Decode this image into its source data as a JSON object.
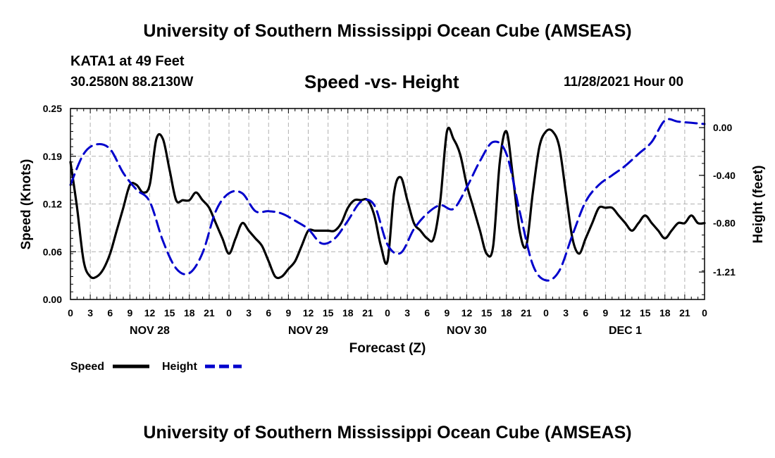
{
  "header": {
    "title": "University of Southern Mississippi Ocean Cube (AMSEAS)",
    "station": "KATA1 at 49 Feet",
    "coordinates": "30.2580N  88.2130W",
    "datetime": "11/28/2021 Hour 00"
  },
  "footer": {
    "title": "University of Southern Mississippi Ocean Cube (AMSEAS)"
  },
  "chart_data": {
    "type": "line",
    "title": "Speed -vs- Height",
    "xlabel": "Forecast (Z)",
    "ylabel": "Speed (Knots)",
    "y2label": "Height (feet)",
    "xlim": [
      0,
      96
    ],
    "ylim": [
      0,
      0.25
    ],
    "y2lim": [
      -1.44,
      0.16
    ],
    "yticks": [
      {
        "v": 0.0,
        "label": "0.00"
      },
      {
        "v": 0.0625,
        "label": "0.06"
      },
      {
        "v": 0.125,
        "label": "0.12"
      },
      {
        "v": 0.1875,
        "label": "0.19"
      },
      {
        "v": 0.25,
        "label": "0.25"
      }
    ],
    "y2ticks": [
      {
        "v": 0.0,
        "label": "0.00"
      },
      {
        "v": -0.4,
        "label": "-0.40"
      },
      {
        "v": -0.8,
        "label": "-0.80"
      },
      {
        "v": -1.21,
        "label": "-1.21"
      }
    ],
    "xtick_labels": [
      "0",
      "3",
      "6",
      "9",
      "12",
      "15",
      "18",
      "21",
      "0",
      "3",
      "6",
      "9",
      "12",
      "15",
      "18",
      "21",
      "0",
      "3",
      "6",
      "9",
      "12",
      "15",
      "18",
      "21",
      "0",
      "3",
      "6",
      "9",
      "12",
      "15",
      "18",
      "21",
      "0"
    ],
    "day_labels": [
      {
        "x": 12,
        "label": "NOV 28"
      },
      {
        "x": 36,
        "label": "NOV 29"
      },
      {
        "x": 60,
        "label": "NOV 30"
      },
      {
        "x": 84,
        "label": "DEC 1"
      }
    ],
    "grid": true,
    "legend": [
      {
        "name": "Speed",
        "color": "#000000",
        "style": "solid"
      },
      {
        "name": "Height",
        "color": "#0000cc",
        "style": "dashed"
      }
    ],
    "series": [
      {
        "name": "Speed",
        "axis": "left",
        "color": "#000000",
        "x": [
          0,
          1,
          2,
          3,
          4,
          5,
          6,
          7,
          8,
          9,
          10,
          11,
          12,
          13,
          14,
          15,
          16,
          17,
          18,
          19,
          20,
          21,
          22,
          23,
          24,
          25,
          26,
          27,
          28,
          29,
          30,
          31,
          32,
          33,
          34,
          35,
          36,
          37,
          38,
          39,
          40,
          41,
          42,
          43,
          44,
          45,
          46,
          47,
          48,
          49,
          50,
          51,
          52,
          53,
          54,
          55,
          56,
          57,
          58,
          59,
          60,
          61,
          62,
          63,
          64,
          65,
          66,
          67,
          68,
          69,
          70,
          71,
          72,
          73,
          74,
          75,
          76,
          77,
          78,
          79,
          80,
          81,
          82,
          83,
          84,
          85,
          86,
          87,
          88,
          89,
          90,
          91,
          92,
          93,
          94,
          95,
          96
        ],
        "values": [
          0.18,
          0.12,
          0.05,
          0.03,
          0.03,
          0.04,
          0.06,
          0.09,
          0.12,
          0.15,
          0.15,
          0.14,
          0.15,
          0.21,
          0.21,
          0.17,
          0.13,
          0.13,
          0.13,
          0.14,
          0.13,
          0.12,
          0.1,
          0.08,
          0.06,
          0.08,
          0.1,
          0.09,
          0.08,
          0.07,
          0.05,
          0.03,
          0.03,
          0.04,
          0.05,
          0.07,
          0.09,
          0.09,
          0.09,
          0.09,
          0.09,
          0.1,
          0.12,
          0.13,
          0.13,
          0.13,
          0.11,
          0.07,
          0.05,
          0.14,
          0.16,
          0.13,
          0.1,
          0.09,
          0.08,
          0.08,
          0.13,
          0.22,
          0.21,
          0.19,
          0.15,
          0.12,
          0.09,
          0.06,
          0.07,
          0.18,
          0.22,
          0.16,
          0.09,
          0.07,
          0.14,
          0.2,
          0.22,
          0.22,
          0.2,
          0.14,
          0.08,
          0.06,
          0.08,
          0.1,
          0.12,
          0.12,
          0.12,
          0.11,
          0.1,
          0.09,
          0.1,
          0.11,
          0.1,
          0.09,
          0.08,
          0.09,
          0.1,
          0.1,
          0.11,
          0.1,
          0.1
        ]
      },
      {
        "name": "Height",
        "axis": "right",
        "color": "#0000cc",
        "x": [
          0,
          2,
          4,
          6,
          8,
          10,
          12,
          14,
          16,
          18,
          20,
          22,
          24,
          26,
          28,
          30,
          32,
          34,
          36,
          38,
          40,
          42,
          44,
          46,
          48,
          50,
          52,
          54,
          56,
          58,
          60,
          62,
          64,
          66,
          68,
          70,
          72,
          74,
          76,
          78,
          80,
          82,
          84,
          86,
          88,
          90,
          92,
          94,
          96
        ],
        "values": [
          -0.48,
          -0.22,
          -0.14,
          -0.18,
          -0.38,
          -0.52,
          -0.62,
          -0.95,
          -1.18,
          -1.22,
          -1.05,
          -0.7,
          -0.55,
          -0.55,
          -0.7,
          -0.7,
          -0.72,
          -0.78,
          -0.85,
          -0.97,
          -0.93,
          -0.78,
          -0.62,
          -0.65,
          -0.98,
          -1.05,
          -0.85,
          -0.72,
          -0.65,
          -0.68,
          -0.5,
          -0.28,
          -0.12,
          -0.22,
          -0.7,
          -1.15,
          -1.28,
          -1.2,
          -0.9,
          -0.62,
          -0.48,
          -0.4,
          -0.32,
          -0.22,
          -0.12,
          0.06,
          0.05,
          0.04,
          0.03
        ]
      }
    ]
  }
}
